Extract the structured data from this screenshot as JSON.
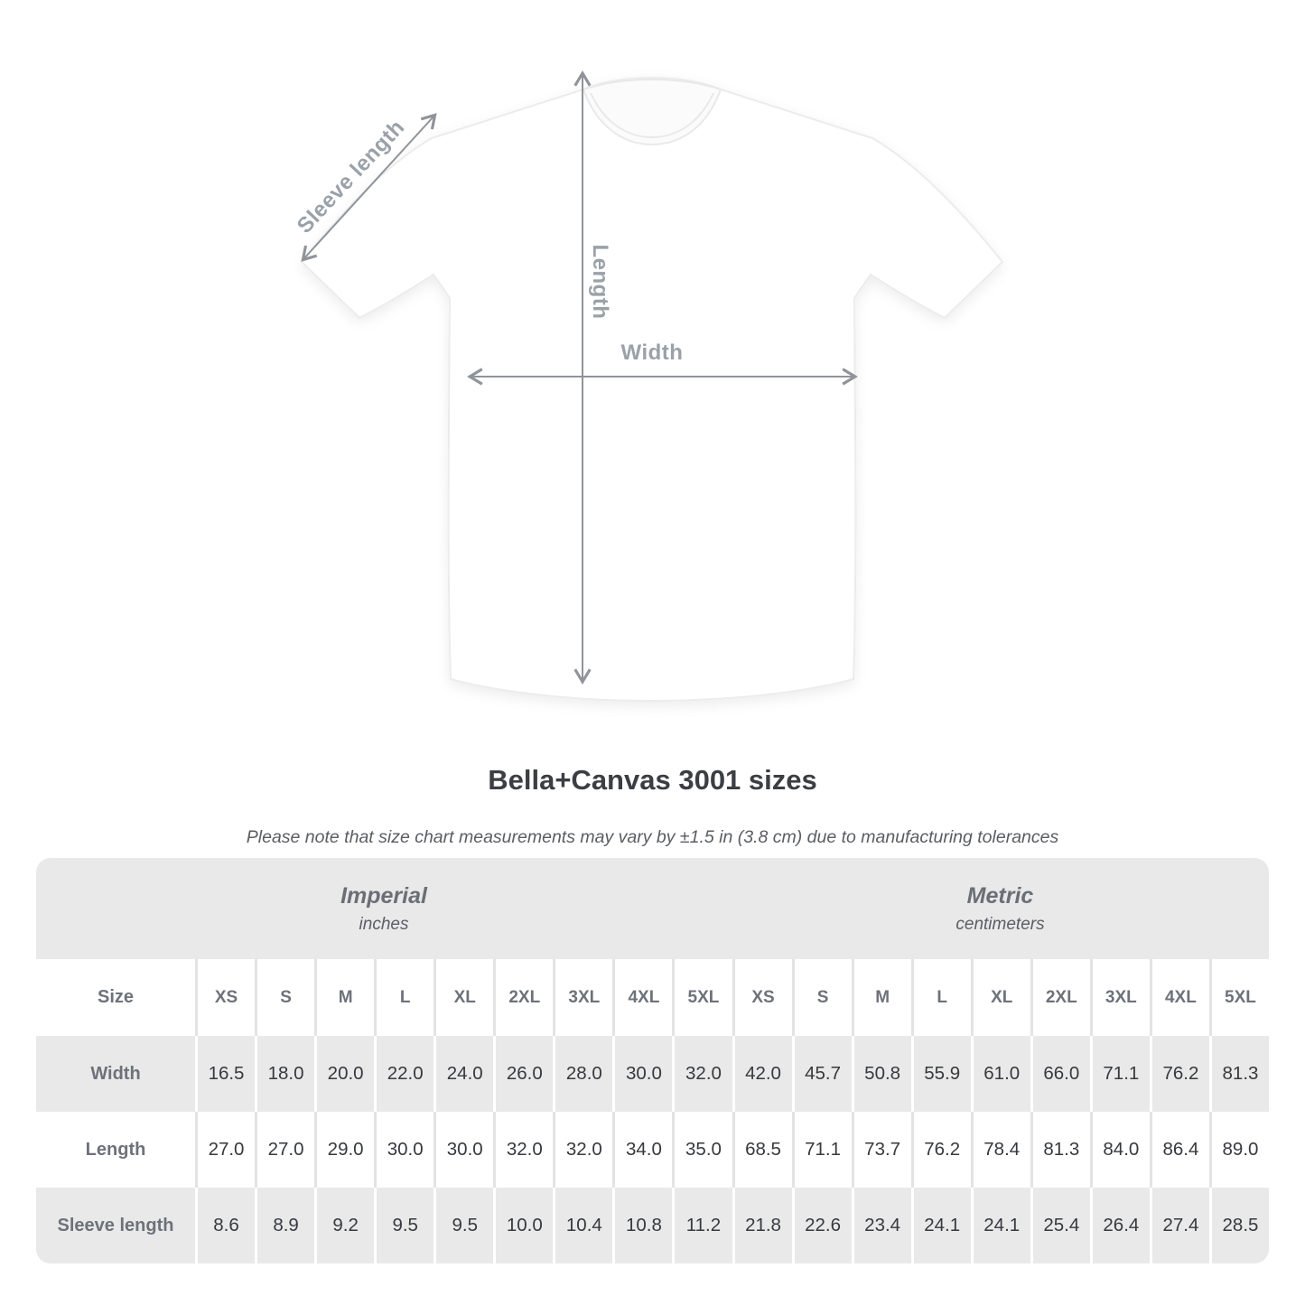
{
  "annotations": {
    "sleeve_length": "Sleeve length",
    "length": "Length",
    "width": "Width"
  },
  "title": "Bella+Canvas 3001 sizes",
  "note": "Please note that size chart measurements may vary by ±1.5 in (3.8 cm) due to manufacturing tolerances",
  "table": {
    "size_label": "Size",
    "groups": [
      {
        "label": "Imperial",
        "sublabel": "inches"
      },
      {
        "label": "Metric",
        "sublabel": "centimeters"
      }
    ],
    "sizes": [
      "XS",
      "S",
      "M",
      "L",
      "XL",
      "2XL",
      "3XL",
      "4XL",
      "5XL"
    ],
    "rows": [
      {
        "label": "Width",
        "imperial": [
          "16.5",
          "18.0",
          "20.0",
          "22.0",
          "24.0",
          "26.0",
          "28.0",
          "30.0",
          "32.0"
        ],
        "metric": [
          "42.0",
          "45.7",
          "50.8",
          "55.9",
          "61.0",
          "66.0",
          "71.1",
          "76.2",
          "81.3"
        ]
      },
      {
        "label": "Length",
        "imperial": [
          "27.0",
          "27.0",
          "29.0",
          "30.0",
          "30.0",
          "32.0",
          "32.0",
          "34.0",
          "35.0"
        ],
        "metric": [
          "68.5",
          "71.1",
          "73.7",
          "76.2",
          "78.4",
          "81.3",
          "84.0",
          "86.4",
          "89.0"
        ]
      },
      {
        "label": "Sleeve length",
        "imperial": [
          "8.6",
          "8.9",
          "9.2",
          "9.5",
          "9.5",
          "10.0",
          "10.4",
          "10.8",
          "11.2"
        ],
        "metric": [
          "21.8",
          "22.6",
          "23.4",
          "24.1",
          "24.1",
          "25.4",
          "26.4",
          "27.4",
          "28.5"
        ]
      }
    ]
  },
  "chart_data": {
    "type": "table",
    "title": "Bella+Canvas 3001 sizes",
    "note": "Please note that size chart measurements may vary by ±1.5 in (3.8 cm) due to manufacturing tolerances",
    "unit_groups": [
      {
        "name": "Imperial",
        "unit": "inches"
      },
      {
        "name": "Metric",
        "unit": "centimeters"
      }
    ],
    "columns": [
      "XS",
      "S",
      "M",
      "L",
      "XL",
      "2XL",
      "3XL",
      "4XL",
      "5XL"
    ],
    "rows": [
      {
        "measurement": "Width",
        "imperial_inches": [
          16.5,
          18.0,
          20.0,
          22.0,
          24.0,
          26.0,
          28.0,
          30.0,
          32.0
        ],
        "metric_cm": [
          42.0,
          45.7,
          50.8,
          55.9,
          61.0,
          66.0,
          71.1,
          76.2,
          81.3
        ]
      },
      {
        "measurement": "Length",
        "imperial_inches": [
          27.0,
          27.0,
          29.0,
          30.0,
          30.0,
          32.0,
          32.0,
          34.0,
          35.0
        ],
        "metric_cm": [
          68.5,
          71.1,
          73.7,
          76.2,
          78.4,
          81.3,
          84.0,
          86.4,
          89.0
        ]
      },
      {
        "measurement": "Sleeve length",
        "imperial_inches": [
          8.6,
          8.9,
          9.2,
          9.5,
          9.5,
          10.0,
          10.4,
          10.8,
          11.2
        ],
        "metric_cm": [
          21.8,
          22.6,
          23.4,
          24.1,
          24.1,
          25.4,
          26.4,
          27.4,
          28.5
        ]
      }
    ],
    "diagram_labels": [
      "Sleeve length",
      "Length",
      "Width"
    ]
  }
}
